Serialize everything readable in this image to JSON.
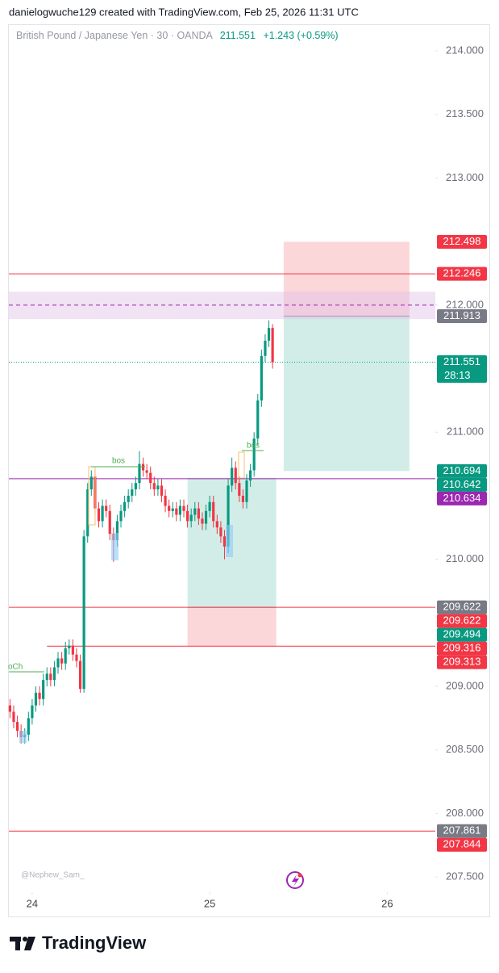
{
  "header": {
    "credit": "danielogwuche129 created with TradingView.com, Feb 25, 2026 11:31 UTC"
  },
  "chart_data": {
    "type": "candlestick",
    "symbol": "British Pound / Japanese Yen · 30 · OANDA",
    "last_price": 211.551,
    "change": "+1.243 (+0.59%)",
    "open": [
      208.85,
      208.8,
      208.72,
      208.65,
      208.6,
      208.62,
      208.75,
      208.85,
      208.95,
      208.9,
      209.05,
      209.1,
      209.05,
      209.15,
      209.22,
      209.18,
      209.3,
      209.32,
      209.25,
      209.2,
      208.98,
      210.18,
      210.55,
      210.65,
      210.4,
      210.3,
      210.42,
      210.38,
      210.2,
      210.15,
      210.3,
      210.38,
      210.45,
      210.5,
      210.55,
      210.6,
      210.75,
      210.7,
      210.68,
      210.6,
      210.55,
      210.58,
      210.5,
      210.42,
      210.38,
      210.4,
      210.35,
      210.42,
      210.38,
      210.3,
      210.35,
      210.4,
      210.32,
      210.28,
      210.38,
      210.45,
      210.3,
      210.25,
      210.18,
      210.1,
      210.58,
      210.72,
      210.6,
      210.5,
      210.45,
      210.62,
      210.7,
      210.95,
      211.25,
      211.6,
      211.72,
      211.82
    ],
    "high": [
      208.9,
      208.85,
      208.77,
      208.7,
      208.67,
      208.8,
      208.9,
      209.0,
      209.0,
      209.1,
      209.15,
      209.15,
      209.2,
      209.27,
      209.27,
      209.35,
      209.37,
      209.37,
      209.3,
      209.25,
      210.23,
      210.6,
      210.7,
      210.7,
      210.45,
      210.47,
      210.47,
      210.43,
      210.25,
      210.35,
      210.43,
      210.5,
      210.55,
      210.6,
      210.65,
      210.85,
      210.8,
      210.75,
      210.73,
      210.65,
      210.63,
      210.63,
      210.55,
      210.47,
      210.45,
      210.45,
      210.47,
      210.47,
      210.43,
      210.4,
      210.45,
      210.45,
      210.37,
      210.43,
      210.5,
      210.5,
      210.35,
      210.3,
      210.23,
      210.63,
      210.8,
      210.77,
      210.65,
      210.55,
      210.67,
      210.75,
      211.0,
      211.3,
      211.65,
      211.77,
      211.88,
      211.85
    ],
    "low": [
      208.75,
      208.67,
      208.6,
      208.55,
      208.55,
      208.57,
      208.7,
      208.8,
      208.85,
      208.85,
      209.0,
      209.0,
      209.0,
      209.1,
      209.13,
      209.13,
      209.25,
      209.2,
      209.15,
      208.95,
      208.95,
      210.13,
      210.5,
      210.35,
      210.25,
      210.25,
      210.33,
      210.15,
      209.98,
      210.1,
      210.25,
      210.33,
      210.4,
      210.45,
      210.5,
      210.55,
      210.65,
      210.63,
      210.55,
      210.5,
      210.5,
      210.45,
      210.37,
      210.33,
      210.33,
      210.3,
      210.3,
      210.33,
      210.25,
      210.25,
      210.3,
      210.27,
      210.23,
      210.23,
      210.33,
      210.25,
      210.2,
      210.13,
      210.0,
      210.05,
      210.53,
      210.55,
      210.45,
      210.4,
      210.4,
      210.57,
      210.65,
      210.9,
      211.2,
      211.55,
      211.67,
      211.5
    ],
    "close": [
      208.8,
      208.72,
      208.65,
      208.6,
      208.62,
      208.75,
      208.85,
      208.95,
      208.9,
      209.05,
      209.1,
      209.05,
      209.15,
      209.22,
      209.18,
      209.3,
      209.32,
      209.25,
      209.2,
      208.98,
      210.18,
      210.55,
      210.65,
      210.4,
      210.3,
      210.42,
      210.38,
      210.2,
      210.15,
      210.3,
      210.38,
      210.45,
      210.5,
      210.55,
      210.6,
      210.75,
      210.7,
      210.68,
      210.6,
      210.55,
      210.58,
      210.5,
      210.42,
      210.38,
      210.4,
      210.35,
      210.42,
      210.38,
      210.3,
      210.35,
      210.4,
      210.32,
      210.28,
      210.38,
      210.45,
      210.3,
      210.25,
      210.18,
      210.1,
      210.58,
      210.72,
      210.6,
      210.5,
      210.45,
      210.62,
      210.7,
      210.95,
      211.25,
      211.6,
      211.72,
      211.82,
      211.55
    ],
    "up_color": "#089981",
    "down_color": "#f23645",
    "xlim": [
      -0.3,
      115
    ],
    "xticks": [
      {
        "value": 6,
        "label": "24"
      },
      {
        "value": 54,
        "label": "25"
      },
      {
        "value": 102,
        "label": "26"
      }
    ],
    "ylim": [
      207.38,
      214.21
    ],
    "yticks": [
      {
        "value": 214,
        "label": "214.000"
      },
      {
        "value": 213.5,
        "label": "213.500"
      },
      {
        "value": 213,
        "label": "213.000"
      },
      {
        "value": 212.5,
        "label": "212.500"
      },
      {
        "value": 212,
        "label": "212.000"
      },
      {
        "value": 211.5,
        "label": "211.500"
      },
      {
        "value": 211,
        "label": "211.000"
      },
      {
        "value": 210.5,
        "label": "210.500"
      },
      {
        "value": 210,
        "label": "210.000"
      },
      {
        "value": 209.5,
        "label": "209.500"
      },
      {
        "value": 209,
        "label": "209.000"
      },
      {
        "value": 208.5,
        "label": "208.500"
      },
      {
        "value": 208,
        "label": "208.000"
      },
      {
        "value": 207.5,
        "label": "207.500"
      }
    ],
    "zone": {
      "top": 212.105,
      "bottom": 211.89,
      "mid": 212,
      "color": "#e1bee7"
    },
    "hlines": [
      {
        "value": 212.246,
        "color": "#f23645"
      },
      {
        "value": 210.634,
        "color": "#9c27b0"
      },
      {
        "value": 209.622,
        "color": "#f23645"
      },
      {
        "value": 209.316,
        "color": "#f23645",
        "x_start": 10
      },
      {
        "value": 207.861,
        "color": "#f23645"
      }
    ],
    "positions": [
      {
        "x_start": 48,
        "x_end": 72,
        "entry": 209.622,
        "target": 210.642,
        "stop": 209.316
      },
      {
        "x_start": 74,
        "x_end": 108,
        "entry": 211.913,
        "target": 210.694,
        "stop": 212.498
      }
    ],
    "price_labels": [
      {
        "value": 212.498,
        "color": "#f23645"
      },
      {
        "value": 212.246,
        "color": "#f23645"
      },
      {
        "value": 211.913,
        "color": "#787b86"
      },
      {
        "value": 211.551,
        "color": "#089981",
        "countdown": "28:13"
      },
      {
        "value": 210.694,
        "color": "#089981"
      },
      {
        "value": 210.642,
        "color": "#089981"
      },
      {
        "value": 210.634,
        "color": "#9c27b0"
      },
      {
        "value": 209.622,
        "color": "#787b86"
      },
      {
        "value": 209.622,
        "color": "#f23645"
      },
      {
        "value": 209.494,
        "color": "#089981"
      },
      {
        "value": 209.316,
        "color": "#f23645"
      },
      {
        "value": 209.313,
        "color": "#f23645"
      },
      {
        "value": 207.861,
        "color": "#787b86"
      },
      {
        "value": 207.844,
        "color": "#f23645"
      }
    ],
    "annotations": [
      "bos",
      "bos",
      "oCh"
    ],
    "watermark": "@Nephew_Sam_"
  },
  "footer": {
    "brand": "TradingView"
  }
}
